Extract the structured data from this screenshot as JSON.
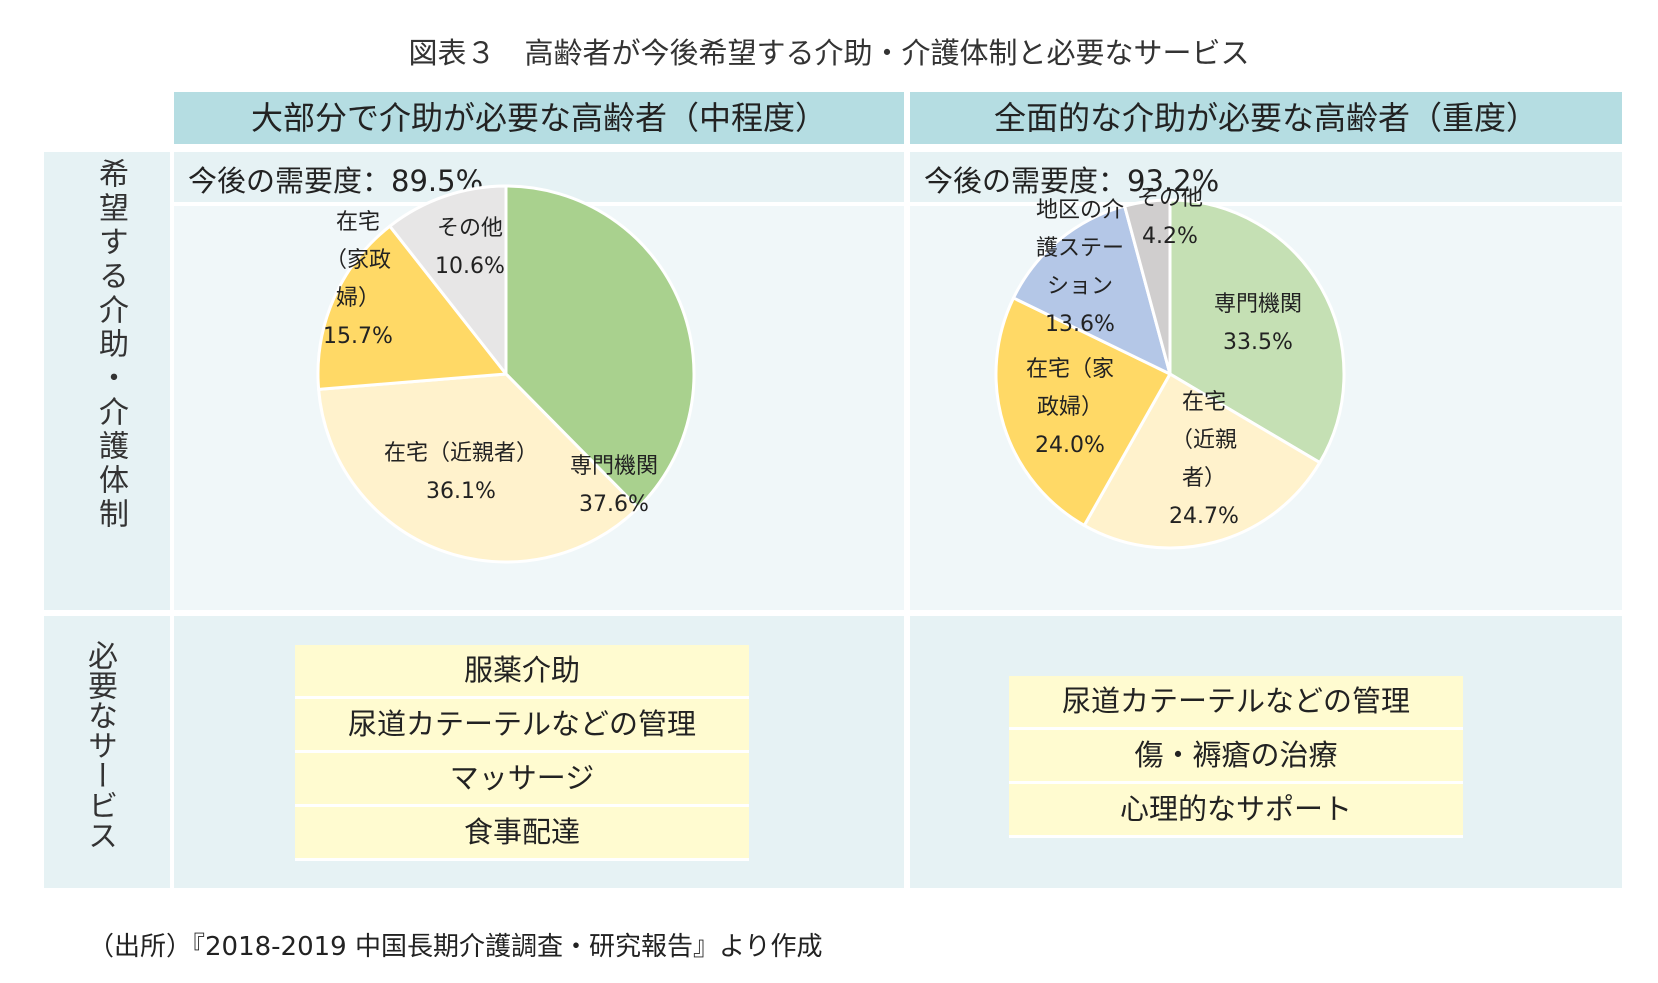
{
  "title": "図表３　高齢者が今後希望する介助・介護体制と必要なサービス",
  "columns": [
    {
      "header": "大部分で介助が必要な高齢者（中程度）",
      "demand": "今後の需要度：89.5%"
    },
    {
      "header": "全面的な介助が必要な高齢者（重度）",
      "demand": "今後の需要度：93.2%"
    }
  ],
  "row_labels": {
    "wish": "希望する介助・介護体制",
    "services": "必要なサービス"
  },
  "services": {
    "left": [
      "服薬介助",
      "尿道カテーテルなどの管理",
      "マッサージ",
      "食事配達"
    ],
    "right": [
      "尿道カテーテルなどの管理",
      "傷・褥瘡の治療",
      "心理的なサポート"
    ]
  },
  "source": "（出所）『2018-2019 中国長期介護調査・研究報告』より作成",
  "chart_data": [
    {
      "type": "pie",
      "title": "",
      "start_angle_deg": 0,
      "slices": [
        {
          "category": "専門機関",
          "value": 37.6,
          "value_label": "37.6%",
          "label_lines": [
            "専門機関"
          ],
          "color": "#a9d18e"
        },
        {
          "category": "在宅（近親者）",
          "value": 36.1,
          "value_label": "36.1%",
          "label_lines": [
            "在宅（近親者）"
          ],
          "color": "#fff2cc"
        },
        {
          "category": "在宅（家政婦）",
          "value": 15.7,
          "value_label": "15.7%",
          "label_lines": [
            "在宅",
            "（家政",
            "婦）"
          ],
          "color": "#ffd966"
        },
        {
          "category": "その他",
          "value": 10.6,
          "value_label": "10.6%",
          "label_lines": [
            "その他"
          ],
          "color": "#e7e6e6"
        }
      ]
    },
    {
      "type": "pie",
      "title": "",
      "start_angle_deg": 0,
      "slices": [
        {
          "category": "専門機関",
          "value": 33.5,
          "value_label": "33.5%",
          "label_lines": [
            "専門機関"
          ],
          "color": "#c5e0b4"
        },
        {
          "category": "在宅（近親者）",
          "value": 24.7,
          "value_label": "24.7%",
          "label_lines": [
            "在宅",
            "（近親",
            "者）"
          ],
          "color": "#fff2cc"
        },
        {
          "category": "在宅（家政婦）",
          "value": 24.0,
          "value_label": "24.0%",
          "label_lines": [
            "在宅（家",
            "政婦）"
          ],
          "color": "#ffd966"
        },
        {
          "category": "地区の介護ステーション",
          "value": 13.6,
          "value_label": "13.6%",
          "label_lines": [
            "地区の介",
            "護ステー",
            "ション"
          ],
          "color": "#b4c7e7"
        },
        {
          "category": "その他",
          "value": 4.2,
          "value_label": "4.2%",
          "label_lines": [
            "その他"
          ],
          "color": "#d0cece"
        }
      ]
    }
  ]
}
